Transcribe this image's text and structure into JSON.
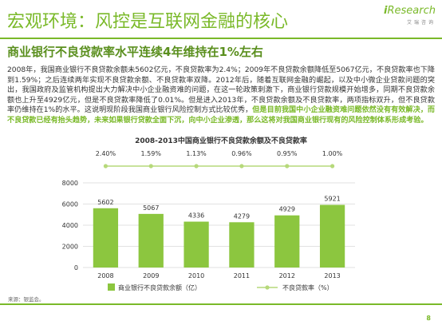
{
  "header": {
    "title": "宏观环境：风控是互联网金融的核心",
    "logo_text": "Research",
    "logo_sub": "艾瑞咨询"
  },
  "subtitle": "商业银行不良贷款率水平连续4年维持在1%左右",
  "body": {
    "normal": "2008年，我国商业银行不良贷款余额未5602亿元，不良贷款率为2.4%；2009年不良贷款余额降低至5067亿元，不良贷款率也下降到1.59%；之后连续两年实现不良贷款余额、不良贷款率双降。2012年后，随着互联网金融的崛起，以及中小微企业贷款问题的突出，我国政府及监管机构提出大力解决中小企业融资难的问题，在这一轮政策刺激下，商业银行贷款规模开始增多，同期不良贷款余额也上升至4929亿元，但是不良贷款率降低了0.01%。但是进入2013年，不良贷款余额及不良贷款率，两项指标双升，但不良贷款率仍维持在1%的水平。这说明现阶段我国商业银行风险控制方式比较优秀，",
    "highlight": "但是目前我国中小企业融资难问题依然没有有效解决，而不良贷款已经有抬头趋势，未来如果银行贷款全面下沉，向中小企业渗透，那么这将对我国商业银行现有的风险控制体系形成考验。"
  },
  "chart_data": {
    "type": "bar+line",
    "title": "2008-2013中国商业银行不良贷款余额及不良贷款率",
    "categories": [
      "2008",
      "2009",
      "2010",
      "2011",
      "2012",
      "2013"
    ],
    "series": [
      {
        "name": "商业银行不良贷款余额（亿）",
        "kind": "bar",
        "values": [
          5602,
          5067,
          4336,
          4279,
          4929,
          5921
        ],
        "labels": [
          "5602",
          "5067",
          "4336",
          "4279",
          "4929",
          "5921"
        ],
        "color": "#8cc63f"
      },
      {
        "name": "不良贷款率（%）",
        "kind": "line",
        "values": [
          2.4,
          1.59,
          1.13,
          0.96,
          0.95,
          1.0
        ],
        "labels": [
          "2.40%",
          "1.59%",
          "1.13%",
          "0.96%",
          "0.95%",
          "1.00%"
        ],
        "color": "#b6d97a"
      }
    ],
    "y_ticks": [
      "0",
      "2000",
      "4000",
      "6000",
      "8000"
    ],
    "ylim": [
      0,
      8000
    ],
    "legend_position": "bottom",
    "grid": true
  },
  "footer": {
    "source": "来源：银监会。",
    "page": "8"
  }
}
